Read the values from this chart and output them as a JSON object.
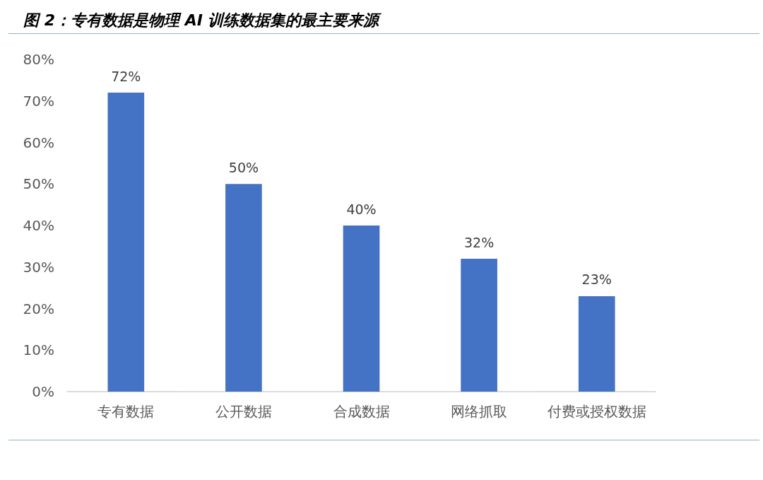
{
  "chart_data": {
    "type": "bar",
    "title": "图 2：专有数据是物理 AI 训练数据集的最主要来源",
    "categories": [
      "专有数据",
      "公开数据",
      "合成数据",
      "网络抓取",
      "付费或授权数据"
    ],
    "values": [
      72,
      50,
      40,
      32,
      23
    ],
    "color": "#4472c4",
    "value_labels": [
      "72%",
      "50%",
      "40%",
      "32%",
      "23%"
    ],
    "ylim": [
      0,
      80
    ],
    "yticks": [
      {
        "value": 0,
        "label": "0%"
      },
      {
        "value": 10,
        "label": "10%"
      },
      {
        "value": 20,
        "label": "20%"
      },
      {
        "value": 30,
        "label": "30%"
      },
      {
        "value": 40,
        "label": "40%"
      },
      {
        "value": 50,
        "label": "50%"
      },
      {
        "value": 60,
        "label": "60%"
      },
      {
        "value": 70,
        "label": "70%"
      },
      {
        "value": 80,
        "label": "80%"
      }
    ]
  }
}
